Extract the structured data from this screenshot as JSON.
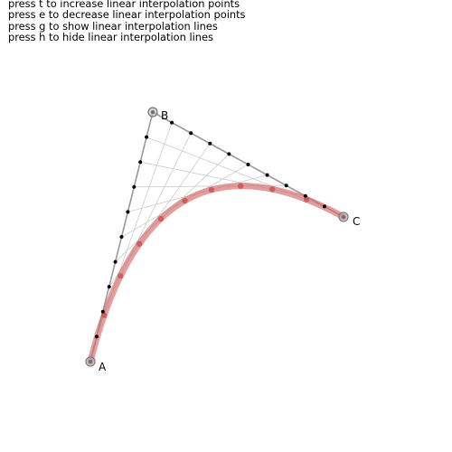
{
  "instructions": [
    "press t to increase linear interpolation points",
    "press e to decrease linear interpolation points",
    "press g to show linear interpolation lines",
    "press h to hide linear interpolation lines"
  ],
  "control_points": [
    {
      "label": "A"
    },
    {
      "label": "B"
    },
    {
      "label": "C"
    }
  ],
  "interpolation_points_count": 10,
  "interpolation_lines_visible": true,
  "colors": {
    "control_line": "#999999",
    "interpolation_line": "#cccccc",
    "interpolation_point": "#000000",
    "curve": "#d46a6a",
    "curve_point": "#c94a4a",
    "control_point_fill": "#bbbbbb",
    "control_point_stroke": "#777777"
  }
}
